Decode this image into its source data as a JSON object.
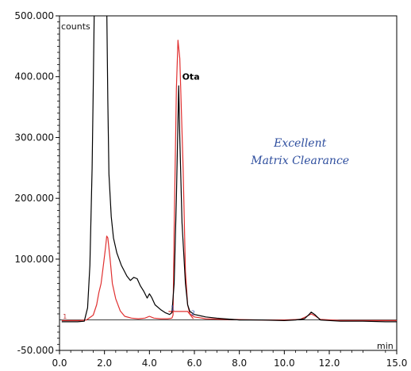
{
  "chart_data": {
    "type": "line",
    "title": "",
    "x_unit": "min",
    "y_unit": "counts",
    "xlim": [
      0,
      15
    ],
    "ylim": [
      -50000,
      500000
    ],
    "x_ticks": [
      {
        "v": 0,
        "label": "0.0"
      },
      {
        "v": 2,
        "label": "2.0"
      },
      {
        "v": 4,
        "label": "4.0"
      },
      {
        "v": 6,
        "label": "6.0"
      },
      {
        "v": 8,
        "label": "8.0"
      },
      {
        "v": 10,
        "label": "10.0"
      },
      {
        "v": 12,
        "label": "12.0"
      },
      {
        "v": 15,
        "label": "15.0"
      }
    ],
    "y_ticks": [
      {
        "v": 500000,
        "label": "500.000"
      },
      {
        "v": 400000,
        "label": "400.000"
      },
      {
        "v": 300000,
        "label": "300.000"
      },
      {
        "v": 200000,
        "label": "200.000"
      },
      {
        "v": 100000,
        "label": "100.000"
      },
      {
        "v": -50000,
        "label": "-50.000"
      }
    ],
    "series": [
      {
        "color": "#000000",
        "points": [
          [
            0.1,
            -3000
          ],
          [
            0.8,
            -3000
          ],
          [
            1.1,
            -2000
          ],
          [
            1.25,
            20000
          ],
          [
            1.35,
            90000
          ],
          [
            1.45,
            250000
          ],
          [
            1.5,
            380000
          ],
          [
            1.55,
            520000
          ],
          [
            2.1,
            520000
          ],
          [
            2.15,
            360000
          ],
          [
            2.2,
            240000
          ],
          [
            2.3,
            170000
          ],
          [
            2.4,
            135000
          ],
          [
            2.55,
            110000
          ],
          [
            2.75,
            90000
          ],
          [
            3.0,
            72000
          ],
          [
            3.15,
            65000
          ],
          [
            3.3,
            70000
          ],
          [
            3.45,
            68000
          ],
          [
            3.6,
            56000
          ],
          [
            3.75,
            47000
          ],
          [
            3.9,
            36000
          ],
          [
            4.0,
            43000
          ],
          [
            4.1,
            37000
          ],
          [
            4.25,
            25000
          ],
          [
            4.5,
            17000
          ],
          [
            4.7,
            12000
          ],
          [
            4.9,
            9000
          ],
          [
            5.0,
            12000
          ],
          [
            5.1,
            60000
          ],
          [
            5.2,
            200000
          ],
          [
            5.3,
            385000
          ],
          [
            5.35,
            300000
          ],
          [
            5.45,
            160000
          ],
          [
            5.6,
            60000
          ],
          [
            5.7,
            25000
          ],
          [
            5.8,
            14000
          ],
          [
            6.0,
            9000
          ],
          [
            6.5,
            5000
          ],
          [
            7.0,
            3000
          ],
          [
            8.0,
            0
          ],
          [
            9.0,
            0
          ],
          [
            10.0,
            -1000
          ],
          [
            10.5,
            0
          ],
          [
            10.9,
            2000
          ],
          [
            11.1,
            9000
          ],
          [
            11.2,
            13000
          ],
          [
            11.35,
            9000
          ],
          [
            11.6,
            0
          ],
          [
            12.5,
            -2000
          ],
          [
            13.5,
            -2000
          ],
          [
            14.5,
            -3000
          ],
          [
            15.0,
            -3000
          ]
        ]
      },
      {
        "color": "#e03030",
        "points": [
          [
            0.1,
            -1000
          ],
          [
            0.4,
            -1000
          ],
          [
            0.9,
            -1000
          ],
          [
            1.2,
            0
          ],
          [
            1.5,
            8000
          ],
          [
            1.65,
            25000
          ],
          [
            1.75,
            45000
          ],
          [
            1.85,
            60000
          ],
          [
            1.95,
            90000
          ],
          [
            2.05,
            120000
          ],
          [
            2.1,
            138000
          ],
          [
            2.15,
            135000
          ],
          [
            2.25,
            100000
          ],
          [
            2.35,
            60000
          ],
          [
            2.5,
            35000
          ],
          [
            2.7,
            15000
          ],
          [
            2.9,
            6000
          ],
          [
            3.2,
            3000
          ],
          [
            3.5,
            2000
          ],
          [
            3.8,
            3000
          ],
          [
            4.0,
            6000
          ],
          [
            4.2,
            3000
          ],
          [
            4.5,
            2000
          ],
          [
            4.8,
            2000
          ],
          [
            5.0,
            3000
          ],
          [
            5.05,
            8000
          ],
          [
            5.1,
            150000
          ],
          [
            5.2,
            380000
          ],
          [
            5.27,
            460000
          ],
          [
            5.35,
            430000
          ],
          [
            5.5,
            250000
          ],
          [
            5.6,
            80000
          ],
          [
            5.7,
            25000
          ],
          [
            5.8,
            10000
          ],
          [
            6.0,
            5000
          ],
          [
            6.5,
            2000
          ],
          [
            7.5,
            1000
          ],
          [
            9.0,
            0
          ],
          [
            10.0,
            0
          ],
          [
            10.7,
            1000
          ],
          [
            11.0,
            6000
          ],
          [
            11.2,
            10000
          ],
          [
            11.4,
            6000
          ],
          [
            11.6,
            1000
          ],
          [
            12.5,
            -1000
          ],
          [
            14.0,
            -1000
          ],
          [
            15.0,
            -1000
          ]
        ]
      },
      {
        "color": "#e03030",
        "points": [
          [
            4.85,
            14000
          ],
          [
            5.7,
            14000
          ],
          [
            5.95,
            2000
          ]
        ]
      }
    ],
    "annotations": [
      {
        "text": "Ota",
        "x": 5.35,
        "y": 395000
      },
      {
        "text": "Excellent",
        "x": 10.7,
        "y": 285000
      },
      {
        "text": "Matrix Clearance",
        "x": 10.7,
        "y": 256000
      }
    ],
    "marks": [
      {
        "text": "1",
        "x": 0.15,
        "y": 2000
      },
      {
        "text": "1",
        "x": 4.95,
        "y": 16000
      },
      {
        "text": "2",
        "x": 5.85,
        "y": 8000
      }
    ]
  }
}
